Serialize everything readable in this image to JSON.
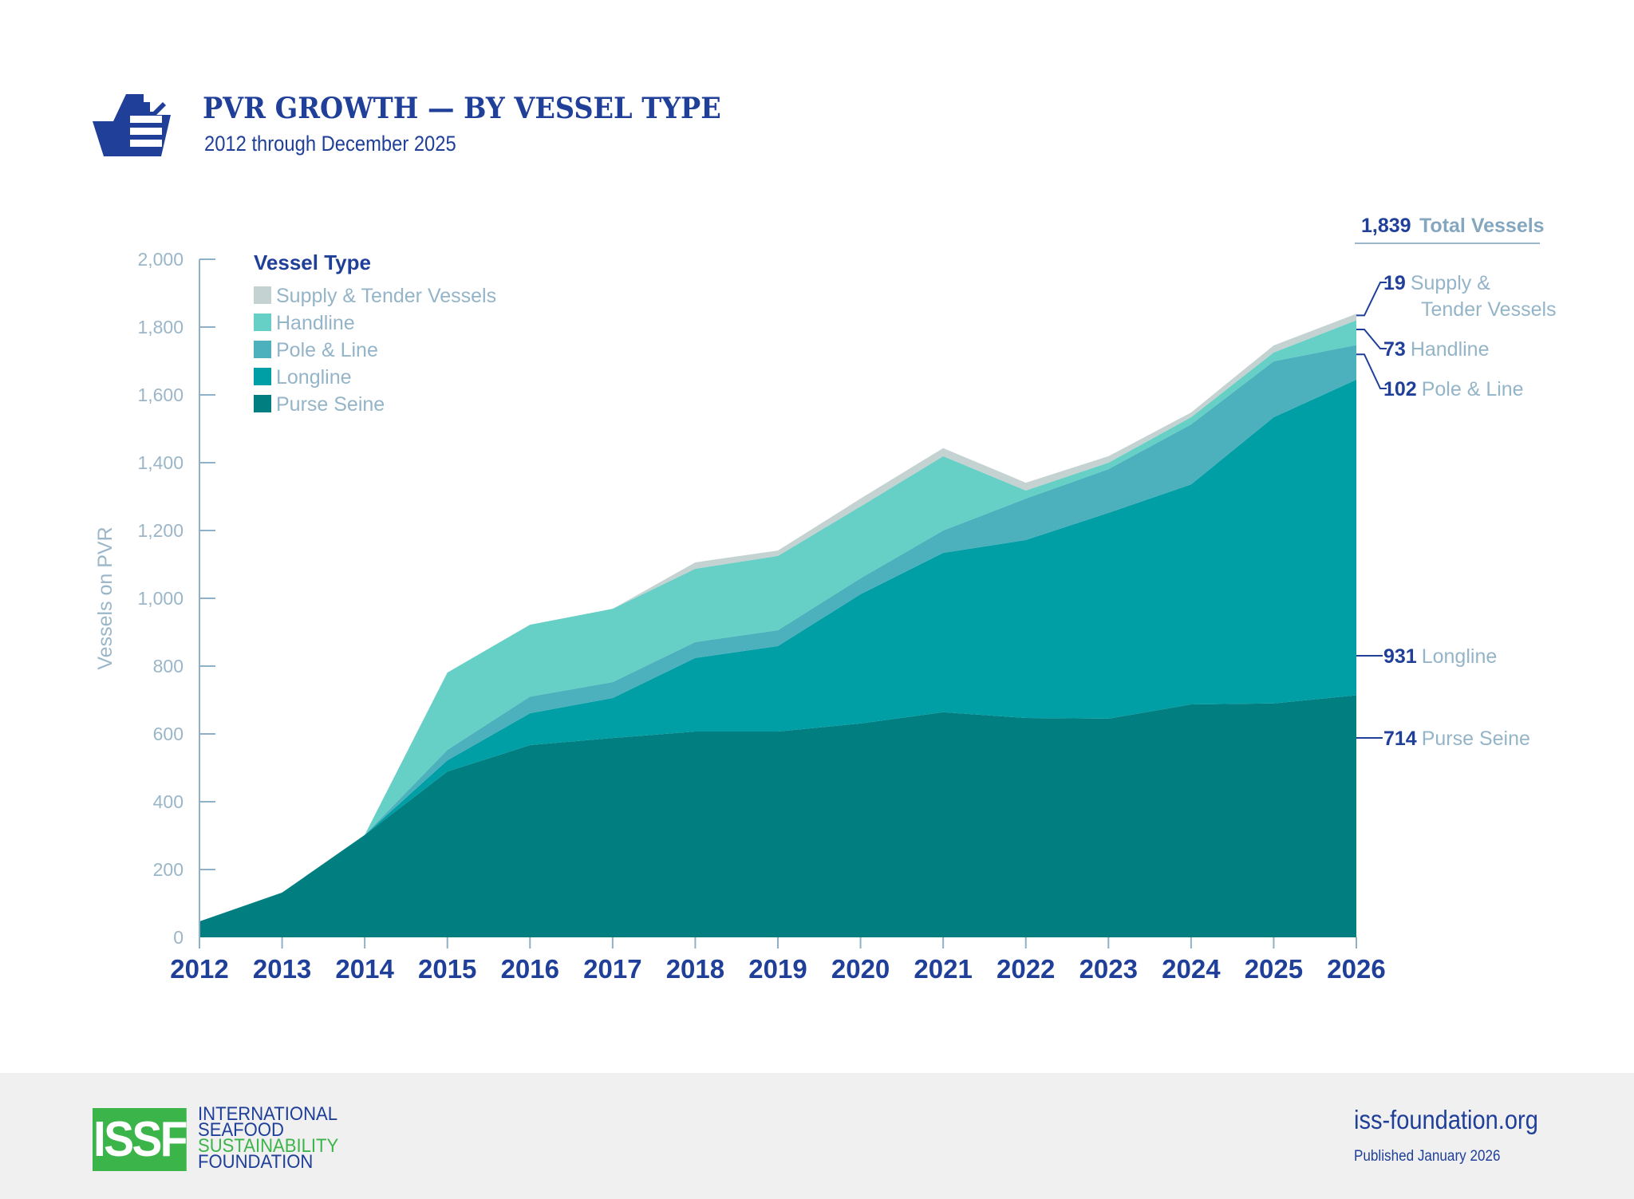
{
  "header": {
    "icon": "ship-icon",
    "title": "PVR GROWTH — BY VESSEL TYPE",
    "subtitle": "2012 through December 2025"
  },
  "colors": {
    "brand_blue": "#1f3f99",
    "axis": "#8fb0c6",
    "purse_seine": "#007e80",
    "longline": "#009ea5",
    "pole_line": "#4db1bd",
    "handline": "#66cfc6",
    "supply_tender": "#c4d3d1",
    "issf_green": "#3bb54a",
    "footer_bg": "#f0f0f0"
  },
  "chart_data": {
    "type": "area",
    "stacked": true,
    "title": "PVR GROWTH — BY VESSEL TYPE",
    "subtitle": "2012 through December 2025",
    "xlabel": "",
    "ylabel": "Vessels on PVR",
    "ylim": [
      0,
      2000
    ],
    "yticks": [
      0,
      200,
      400,
      600,
      800,
      1000,
      1200,
      1400,
      1600,
      1800,
      2000
    ],
    "ytick_labels": [
      "0",
      "200",
      "400",
      "600",
      "800",
      "1,000",
      "1,200",
      "1,400",
      "1,600",
      "1,800",
      "2,000"
    ],
    "x": [
      "2012",
      "2013",
      "2014",
      "2015",
      "2016",
      "2017",
      "2018",
      "2019",
      "2020",
      "2021",
      "2022",
      "2023",
      "2024",
      "2025",
      "2026"
    ],
    "grid": false,
    "legend": {
      "title": "Vessel Type",
      "placement": "top-left",
      "order": [
        "Supply & Tender Vessels",
        "Handline",
        "Pole & Line",
        "Longline",
        "Purse Seine"
      ]
    },
    "series": [
      {
        "name": "Purse Seine",
        "key": "purse_seine",
        "values": [
          47,
          132,
          302,
          489,
          567,
          588,
          607,
          607,
          631,
          664,
          647,
          645,
          687,
          690,
          714
        ]
      },
      {
        "name": "Longline",
        "key": "longline",
        "values": [
          0,
          0,
          0,
          33,
          94,
          118,
          217,
          252,
          381,
          470,
          525,
          607,
          649,
          844,
          931
        ]
      },
      {
        "name": "Pole & Line",
        "key": "pole_line",
        "values": [
          0,
          0,
          0,
          31,
          49,
          47,
          47,
          47,
          47,
          66,
          122,
          129,
          177,
          165,
          102
        ]
      },
      {
        "name": "Handline",
        "key": "handline",
        "values": [
          0,
          0,
          0,
          228,
          212,
          216,
          216,
          219,
          212,
          219,
          24,
          19,
          21,
          26,
          73
        ]
      },
      {
        "name": "Supply & Tender Vessels",
        "key": "supply_tender",
        "values": [
          0,
          0,
          0,
          0,
          0,
          0,
          19,
          16,
          23,
          24,
          23,
          19,
          14,
          21,
          19
        ]
      }
    ],
    "annotations": {
      "total": {
        "value": "1,839",
        "label": "Total Vessels"
      },
      "callouts": [
        {
          "key": "supply_tender",
          "value": "19",
          "label_line1": "Supply &",
          "label_line2": "Tender Vessels"
        },
        {
          "key": "handline",
          "value": "73",
          "label_line1": "Handline",
          "label_line2": ""
        },
        {
          "key": "pole_line",
          "value": "102",
          "label_line1": "Pole & Line",
          "label_line2": ""
        },
        {
          "key": "longline",
          "value": "931",
          "label_line1": "Longline",
          "label_line2": ""
        },
        {
          "key": "purse_seine",
          "value": "714",
          "label_line1": "Purse Seine",
          "label_line2": ""
        }
      ]
    }
  },
  "footer": {
    "logo_mark": "ISSF",
    "logo_lines": [
      "INTERNATIONAL",
      "SEAFOOD",
      "SUSTAINABILITY",
      "FOUNDATION"
    ],
    "website": "iss-foundation.org",
    "published": "Published January 2026"
  }
}
